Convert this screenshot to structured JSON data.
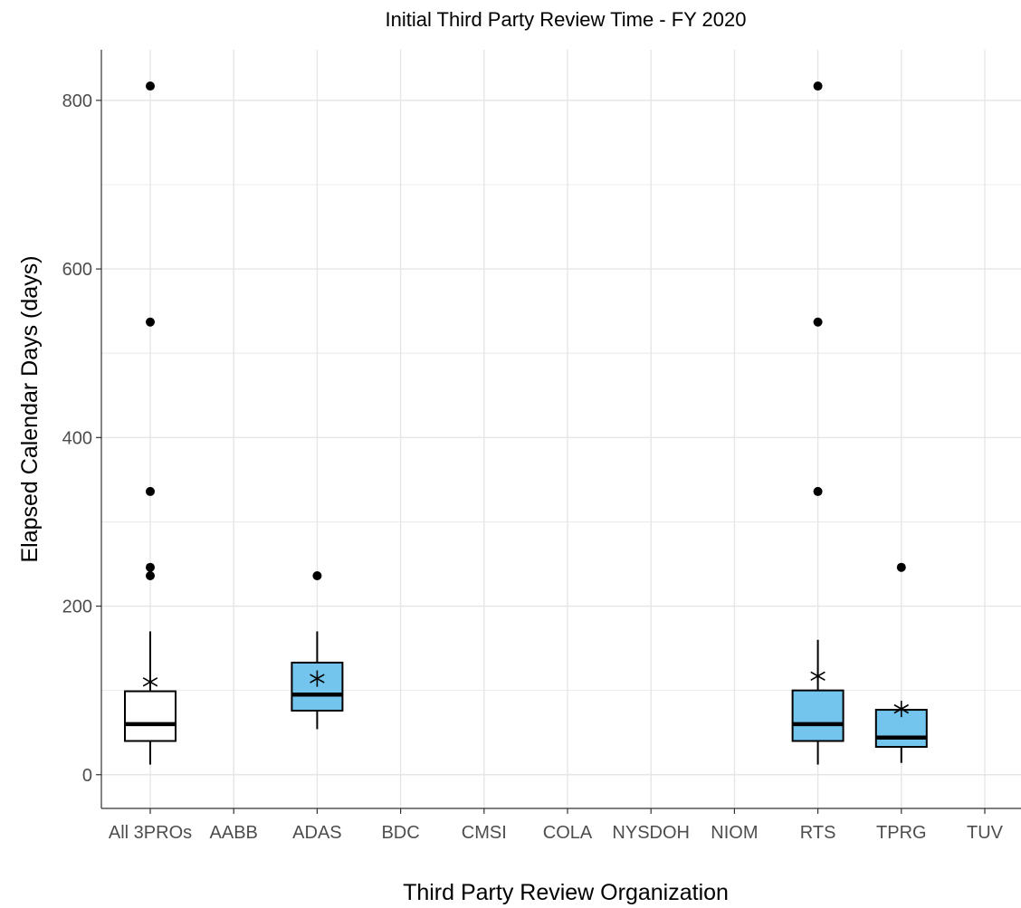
{
  "chart_data": {
    "type": "box",
    "title": "Initial Third Party Review Time - FY 2020",
    "xlabel": "Third Party Review Organization",
    "ylabel": "Elapsed Calendar Days (days)",
    "categories": [
      "All 3PROs",
      "AABB",
      "ADAS",
      "BDC",
      "CMSI",
      "COLA",
      "NYSDOH",
      "NIOM",
      "RTS",
      "TPRG",
      "TUV"
    ],
    "ylim": [
      -40,
      860
    ],
    "yticks": [
      0,
      200,
      400,
      600,
      800
    ],
    "grid": true,
    "legend": "none",
    "colors": {
      "all": "#ffffff",
      "org": "#73c5ed",
      "stroke": "#000000",
      "grid": "#e6e6e6"
    },
    "boxes": [
      {
        "category": "All 3PROs",
        "fill": "all",
        "whisker_low": 12,
        "q1": 40,
        "median": 60,
        "q3": 99,
        "whisker_high": 170,
        "mean": 110,
        "outliers": [
          236,
          246,
          336,
          537,
          817
        ]
      },
      {
        "category": "ADAS",
        "fill": "org",
        "whisker_low": 54,
        "q1": 76,
        "median": 95,
        "q3": 133,
        "whisker_high": 170,
        "mean": 114,
        "outliers": [
          236
        ]
      },
      {
        "category": "RTS",
        "fill": "org",
        "whisker_low": 12,
        "q1": 40,
        "median": 60,
        "q3": 100,
        "whisker_high": 160,
        "mean": 117,
        "outliers": [
          336,
          537,
          817
        ]
      },
      {
        "category": "TPRG",
        "fill": "org",
        "whisker_low": 14,
        "q1": 33,
        "median": 44,
        "q3": 77,
        "whisker_high": 77,
        "mean": 78,
        "outliers": [
          246
        ]
      }
    ]
  }
}
